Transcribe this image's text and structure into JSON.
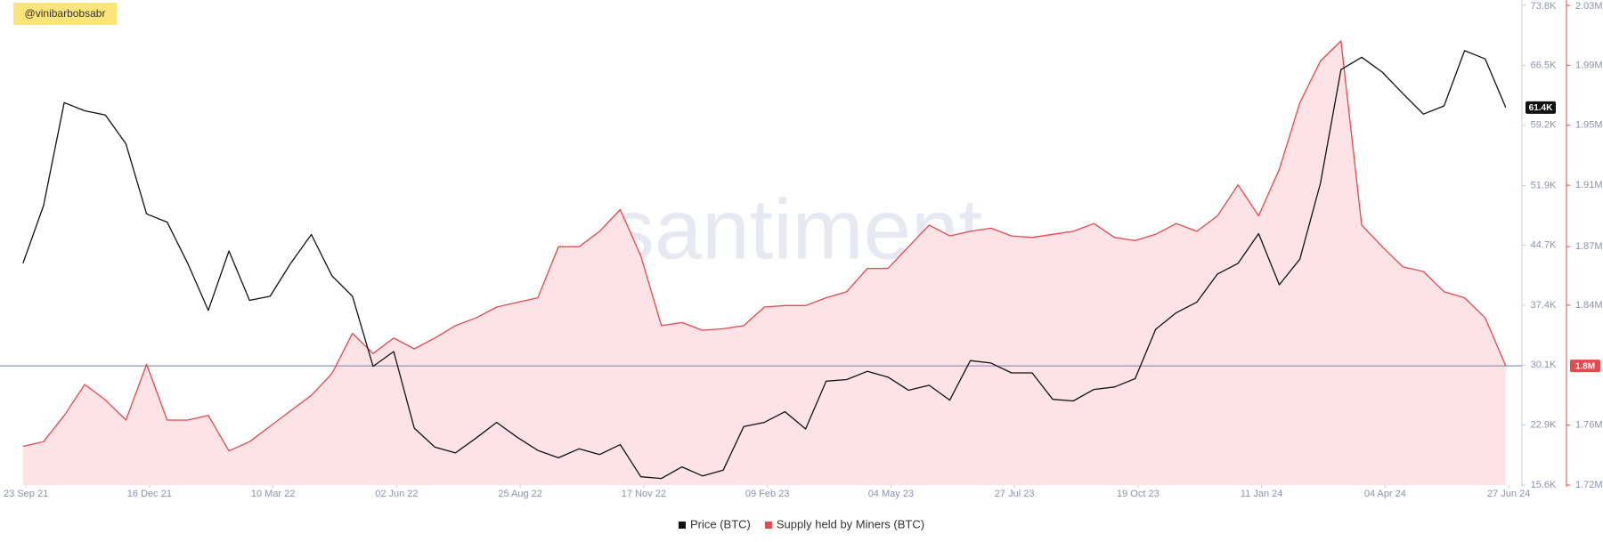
{
  "annotation": "@vinibarbobsabr",
  "watermark": "santiment",
  "chart_data": {
    "type": "line",
    "x": [
      "2021-09-21",
      "2021-10-05",
      "2021-10-19",
      "2021-11-02",
      "2021-11-16",
      "2021-11-30",
      "2021-12-14",
      "2021-12-28",
      "2022-01-11",
      "2022-01-25",
      "2022-02-08",
      "2022-02-22",
      "2022-03-08",
      "2022-03-22",
      "2022-04-05",
      "2022-04-19",
      "2022-05-03",
      "2022-05-17",
      "2022-05-31",
      "2022-06-14",
      "2022-06-28",
      "2022-07-12",
      "2022-07-26",
      "2022-08-09",
      "2022-08-23",
      "2022-09-06",
      "2022-09-20",
      "2022-10-04",
      "2022-10-18",
      "2022-11-01",
      "2022-11-15",
      "2022-11-29",
      "2022-12-13",
      "2022-12-27",
      "2023-01-10",
      "2023-01-24",
      "2023-02-07",
      "2023-02-21",
      "2023-03-07",
      "2023-03-21",
      "2023-04-04",
      "2023-04-18",
      "2023-05-02",
      "2023-05-16",
      "2023-05-30",
      "2023-06-13",
      "2023-06-27",
      "2023-07-11",
      "2023-07-25",
      "2023-08-08",
      "2023-08-22",
      "2023-09-05",
      "2023-09-19",
      "2023-10-03",
      "2023-10-17",
      "2023-10-31",
      "2023-11-14",
      "2023-11-28",
      "2023-12-12",
      "2023-12-26",
      "2024-01-09",
      "2024-01-23",
      "2024-02-06",
      "2024-02-20",
      "2024-03-05",
      "2024-03-19",
      "2024-04-02",
      "2024-04-16",
      "2024-04-30",
      "2024-05-14",
      "2024-05-28",
      "2024-06-11",
      "2024-06-25"
    ],
    "xlim": [
      "2021-09-09",
      "2024-07-06"
    ],
    "xticks": [
      {
        "value": "2021-09-23",
        "label": "23 Sep 21"
      },
      {
        "value": "2021-12-16",
        "label": "16 Dec 21"
      },
      {
        "value": "2022-03-10",
        "label": "10 Mar 22"
      },
      {
        "value": "2022-06-02",
        "label": "02 Jun 22"
      },
      {
        "value": "2022-08-25",
        "label": "25 Aug 22"
      },
      {
        "value": "2022-11-17",
        "label": "17 Nov 22"
      },
      {
        "value": "2023-02-09",
        "label": "09 Feb 23"
      },
      {
        "value": "2023-05-04",
        "label": "04 May 23"
      },
      {
        "value": "2023-07-27",
        "label": "27 Jul 23"
      },
      {
        "value": "2023-10-19",
        "label": "19 Oct 23"
      },
      {
        "value": "2024-01-11",
        "label": "11 Jan 24"
      },
      {
        "value": "2024-04-04",
        "label": "04 Apr 24"
      },
      {
        "value": "2024-06-27",
        "label": "27 Jun 24"
      }
    ],
    "ylim": [
      15600,
      73800
    ],
    "yticks": [
      {
        "value": 15600,
        "label": "15.6K"
      },
      {
        "value": 22875,
        "label": "22.9K"
      },
      {
        "value": 30140,
        "label": "30.1K"
      },
      {
        "value": 37425,
        "label": "37.4K"
      },
      {
        "value": 44700,
        "label": "44.7K"
      },
      {
        "value": 51940,
        "label": "51.9K"
      },
      {
        "value": 59240,
        "label": "59.2K"
      },
      {
        "value": 66525,
        "label": "66.5K"
      },
      {
        "value": 73800,
        "label": "73.8K"
      }
    ],
    "y2lim": [
      1720000,
      2030000
    ],
    "y2ticks": [
      {
        "value": 1720000,
        "label": "1.72M"
      },
      {
        "value": 1758750,
        "label": "1.76M"
      },
      {
        "value": 1836250,
        "label": "1.84M"
      },
      {
        "value": 1874000,
        "label": "1.87M"
      },
      {
        "value": 1913750,
        "label": "1.91M"
      },
      {
        "value": 1952500,
        "label": "1.95M"
      },
      {
        "value": 1991250,
        "label": "1.99M"
      },
      {
        "value": 2030000,
        "label": "2.03M"
      }
    ],
    "last_value_line_color": "#8d96bb",
    "series": [
      {
        "name": "Price (BTC)",
        "color": "#111111",
        "axis": "y",
        "values": [
          42500,
          49500,
          62000,
          61000,
          60500,
          57000,
          48500,
          47500,
          42500,
          36800,
          44000,
          38000,
          38500,
          42500,
          46000,
          41000,
          38500,
          30000,
          31800,
          22500,
          20200,
          19500,
          21300,
          23200,
          21400,
          19800,
          18900,
          20000,
          19300,
          20500,
          16600,
          16400,
          17800,
          16700,
          17400,
          22700,
          23200,
          24500,
          22400,
          28200,
          28400,
          29400,
          28700,
          27100,
          27700,
          25900,
          30700,
          30400,
          29200,
          29200,
          26000,
          25800,
          27200,
          27500,
          28500,
          34500,
          36500,
          37800,
          41200,
          42500,
          46100,
          39900,
          43000,
          52200,
          66000,
          67500,
          65700,
          63100,
          60600,
          61600,
          68300,
          67300,
          61400
        ],
        "value_labels": [
          null,
          null,
          null,
          null,
          null,
          null,
          null,
          null,
          null,
          null,
          null,
          null,
          null,
          null,
          null,
          null,
          null,
          null,
          null,
          null,
          null,
          null,
          null,
          null,
          null,
          null,
          null,
          null,
          null,
          null,
          null,
          null,
          null,
          null,
          null,
          null,
          null,
          null,
          null,
          null,
          null,
          null,
          null,
          null,
          null,
          null,
          null,
          null,
          null,
          null,
          null,
          null,
          null,
          null,
          null,
          null,
          null,
          null,
          null,
          null,
          null,
          null,
          null,
          null,
          null,
          null,
          null,
          null,
          null,
          null,
          null,
          null,
          "61.4K"
        ]
      },
      {
        "name": "Supply held by Miners (BTC)",
        "color": "#e5484d",
        "fill": "#fde3e5",
        "axis": "y2",
        "values": [
          1745000,
          1748000,
          1765000,
          1785000,
          1775000,
          1762000,
          1798000,
          1762000,
          1762000,
          1765000,
          1742000,
          1748000,
          1758000,
          1768000,
          1778000,
          1792000,
          1818000,
          1805000,
          1815000,
          1808000,
          1815000,
          1823000,
          1828000,
          1835000,
          1838000,
          1841000,
          1874000,
          1874000,
          1884000,
          1898000,
          1868000,
          1823000,
          1825000,
          1820000,
          1821000,
          1823000,
          1835000,
          1836000,
          1836000,
          1841000,
          1845000,
          1860000,
          1860000,
          1874000,
          1888000,
          1881000,
          1884000,
          1886000,
          1881000,
          1880000,
          1882000,
          1884000,
          1889000,
          1880000,
          1878000,
          1882000,
          1889000,
          1884000,
          1894000,
          1914000,
          1894000,
          1924000,
          1967000,
          1994000,
          2007000,
          1888000,
          1874000,
          1861000,
          1858000,
          1845000,
          1841000,
          1828000,
          1797000
        ],
        "value_labels": [
          null,
          null,
          null,
          null,
          null,
          null,
          null,
          null,
          null,
          null,
          null,
          null,
          null,
          null,
          null,
          null,
          null,
          null,
          null,
          null,
          null,
          null,
          null,
          null,
          null,
          null,
          null,
          null,
          null,
          null,
          null,
          null,
          null,
          null,
          null,
          null,
          null,
          null,
          null,
          null,
          null,
          null,
          null,
          null,
          null,
          null,
          null,
          null,
          null,
          null,
          null,
          null,
          null,
          null,
          null,
          null,
          null,
          null,
          null,
          null,
          null,
          null,
          null,
          null,
          null,
          null,
          null,
          null,
          null,
          null,
          null,
          null,
          "1.8M"
        ]
      }
    ]
  }
}
